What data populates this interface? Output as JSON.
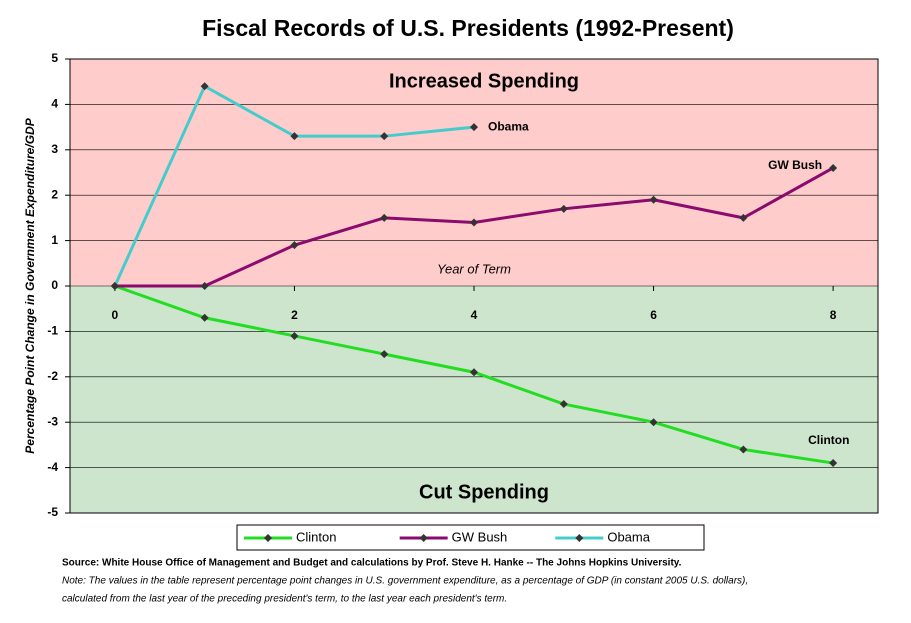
{
  "chart_data": {
    "type": "line",
    "title": "Fiscal Records of U.S. Presidents (1992-Present)",
    "xlabel": "Year of Term",
    "ylabel": "Percentage Point Change in Government Expenditure/GDP",
    "regions": [
      {
        "label": "Increased Spending",
        "color": "#ffcccc",
        "side": "above"
      },
      {
        "label": "Cut Spending",
        "color": "#cce5cc",
        "side": "below"
      }
    ],
    "x": [
      0,
      1,
      2,
      3,
      4,
      5,
      6,
      7,
      8
    ],
    "series": [
      {
        "name": "Clinton",
        "color": "#22dd22",
        "values": [
          0,
          -0.7,
          -1.1,
          -1.5,
          -1.9,
          -2.6,
          -3.0,
          -3.6,
          -3.9
        ]
      },
      {
        "name": "GW Bush",
        "color": "#8b0a6e",
        "values": [
          0,
          0,
          0.9,
          1.5,
          1.4,
          1.7,
          1.9,
          1.5,
          2.6
        ]
      },
      {
        "name": "Obama",
        "color": "#44cccc",
        "values": [
          0,
          4.4,
          3.3,
          3.3,
          3.5,
          null,
          null,
          null,
          null
        ]
      }
    ],
    "marker_color": "#333333",
    "xlim": [
      -0.5,
      8.5
    ],
    "xticks": [
      0,
      2,
      4,
      6,
      8
    ],
    "ylim": [
      -5,
      5
    ],
    "yticks": [
      -5,
      -4,
      -3,
      -2,
      -1,
      0,
      1,
      2,
      3,
      4,
      5
    ],
    "grid": true,
    "source": "Source: White House Office of Management and Budget and calculations by Prof. Steve H. Hanke -- The Johns Hopkins University.",
    "note_lines": [
      "Note: The values in the table represent percentage point changes in U.S. government expenditure, as a percentage of GDP (in constant 2005 U.S. dollars),",
      "calculated from the last year of the preceding president's term, to the last year each president's term."
    ]
  }
}
